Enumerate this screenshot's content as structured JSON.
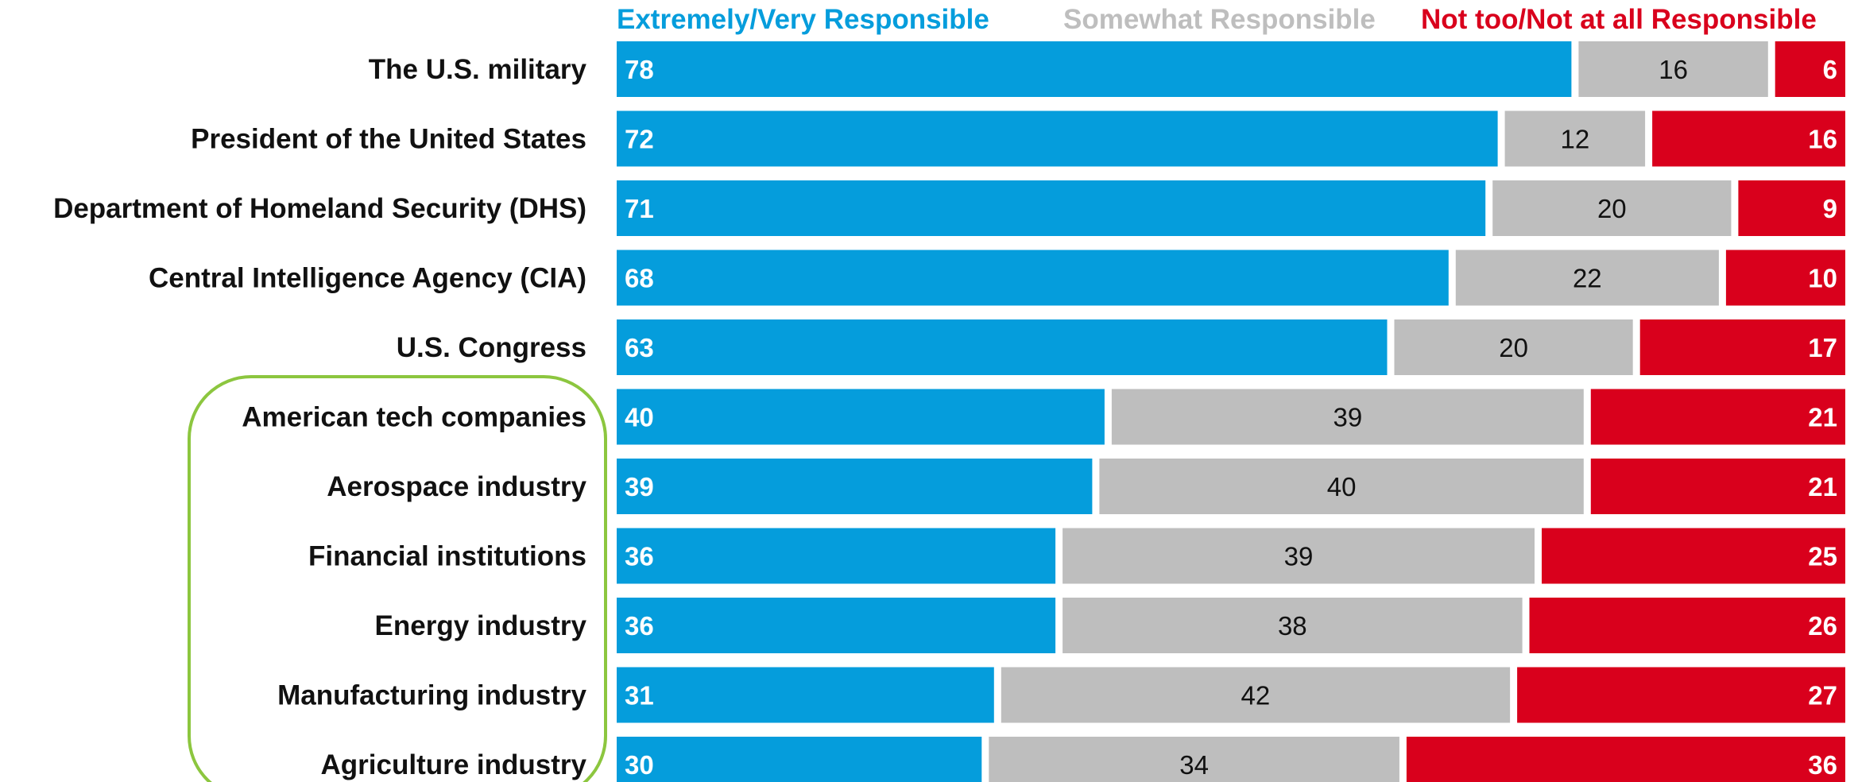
{
  "colors": {
    "very": "#059ddc",
    "somewhat": "#bebebe",
    "not": "#d9001c",
    "highlight": "#8cc63f"
  },
  "chart_data": {
    "type": "bar",
    "orientation": "horizontal",
    "stacked": true,
    "title": "",
    "xlabel": "",
    "ylabel": "",
    "legend_position": "top",
    "grid": false,
    "xlim": [
      0,
      100
    ],
    "categories": [
      "The U.S. military",
      "President of the United States",
      "Department of Homeland Security (DHS)",
      "Central Intelligence Agency (CIA)",
      "U.S. Congress",
      "American tech companies",
      "Aerospace industry",
      "Financial institutions",
      "Energy industry",
      "Manufacturing industry",
      "Agriculture industry"
    ],
    "series": [
      {
        "name": "Extremely/Very Responsible",
        "values": [
          78,
          72,
          71,
          68,
          63,
          40,
          39,
          36,
          36,
          31,
          30
        ]
      },
      {
        "name": "Somewhat Responsible",
        "values": [
          16,
          12,
          20,
          22,
          20,
          39,
          40,
          39,
          38,
          42,
          34
        ]
      },
      {
        "name": "Not too/Not at all Responsible",
        "values": [
          6,
          16,
          9,
          10,
          17,
          21,
          21,
          25,
          26,
          27,
          36
        ]
      }
    ],
    "highlighted_categories": [
      "American tech companies",
      "Aerospace industry",
      "Financial institutions",
      "Energy industry",
      "Manufacturing industry",
      "Agriculture industry"
    ]
  }
}
